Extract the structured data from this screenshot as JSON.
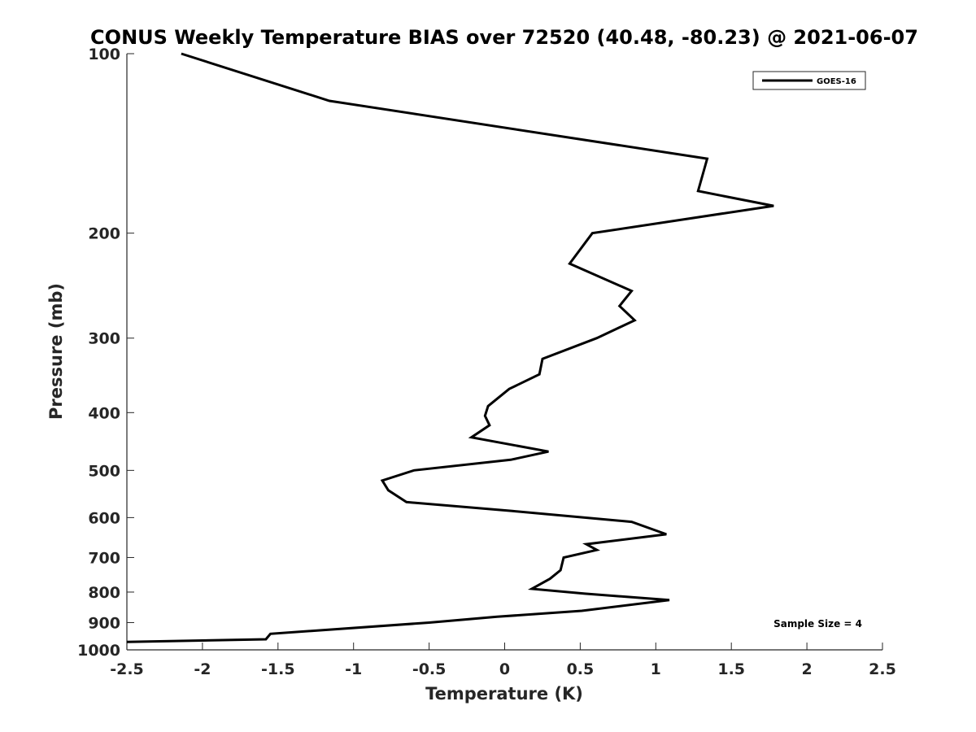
{
  "chart_data": {
    "type": "line",
    "title": "CONUS Weekly Temperature BIAS over 72520 (40.48, -80.23) @ 2021-06-07",
    "xlabel": "Temperature (K)",
    "ylabel": "Pressure (mb)",
    "xlim": [
      -2.5,
      2.5
    ],
    "ylim": [
      1000,
      100
    ],
    "yscale": "log",
    "y_reversed": true,
    "grid": false,
    "legend_position": "top-right",
    "xticks": [
      -2.5,
      -2,
      -1.5,
      -1,
      -0.5,
      0,
      0.5,
      1,
      1.5,
      2,
      2.5
    ],
    "xtick_labels": [
      "-2.5",
      "-2",
      "-1.5",
      "-1",
      "-0.5",
      "0",
      "0.5",
      "1",
      "1.5",
      "2",
      "2.5"
    ],
    "yticks": [
      100,
      200,
      300,
      400,
      500,
      600,
      700,
      800,
      900,
      1000
    ],
    "ytick_labels": [
      "100",
      "200",
      "300",
      "400",
      "500",
      "600",
      "700",
      "800",
      "900",
      "1000"
    ],
    "series": [
      {
        "name": "GOES-16",
        "color": "#000000",
        "points": [
          [
            -2.14,
            100
          ],
          [
            -1.16,
            120
          ],
          [
            1.34,
            150
          ],
          [
            1.28,
            170
          ],
          [
            1.78,
            180
          ],
          [
            0.58,
            200
          ],
          [
            0.43,
            225
          ],
          [
            0.84,
            250
          ],
          [
            0.76,
            265
          ],
          [
            0.86,
            280
          ],
          [
            0.61,
            300
          ],
          [
            0.25,
            325
          ],
          [
            0.23,
            345
          ],
          [
            0.03,
            365
          ],
          [
            -0.11,
            390
          ],
          [
            -0.13,
            405
          ],
          [
            -0.1,
            420
          ],
          [
            -0.22,
            440
          ],
          [
            0.29,
            465
          ],
          [
            0.04,
            480
          ],
          [
            -0.6,
            500
          ],
          [
            -0.81,
            520
          ],
          [
            -0.77,
            540
          ],
          [
            -0.65,
            565
          ],
          [
            0.05,
            585
          ],
          [
            0.84,
            610
          ],
          [
            1.07,
            640
          ],
          [
            0.54,
            665
          ],
          [
            0.61,
            680
          ],
          [
            0.39,
            700
          ],
          [
            0.37,
            735
          ],
          [
            0.3,
            760
          ],
          [
            0.18,
            790
          ],
          [
            0.53,
            805
          ],
          [
            1.09,
            825
          ],
          [
            0.51,
            860
          ],
          [
            -0.05,
            880
          ],
          [
            -0.5,
            900
          ],
          [
            -1.55,
            940
          ],
          [
            -1.58,
            960
          ],
          [
            -2.5,
            970
          ]
        ]
      }
    ],
    "annotations": [
      {
        "text": "Sample Size = 4",
        "position": "bottom-right"
      }
    ]
  }
}
